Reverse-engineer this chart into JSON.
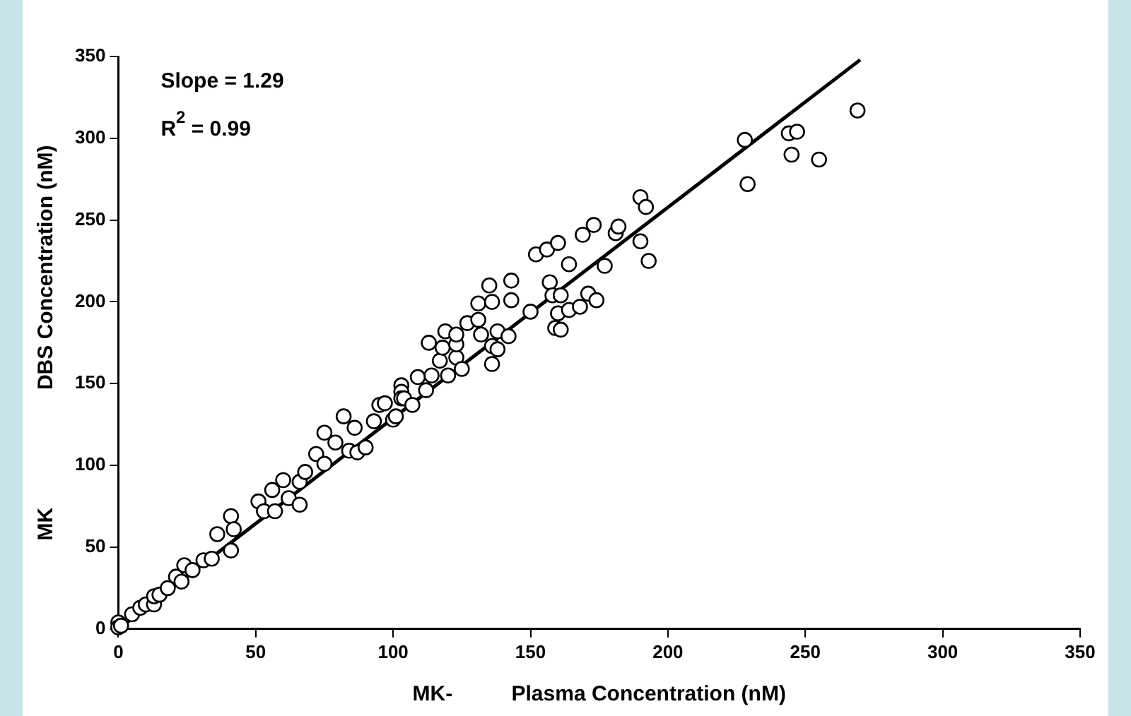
{
  "chart_data": {
    "type": "scatter",
    "xlabel": "MK-          Plasma Concentration (nM)",
    "ylabel": "MK                    DBS Concentration (nM)",
    "annotations": [
      "Slope = 1.29",
      "R$^{2}$ = 0.99"
    ],
    "xlim": [
      0,
      350
    ],
    "xticks": [
      0,
      50,
      100,
      150,
      200,
      250,
      300,
      350
    ],
    "ylim": [
      0,
      350
    ],
    "yticks": [
      0,
      50,
      100,
      150,
      200,
      250,
      300,
      350
    ],
    "grid": false,
    "legend": false,
    "marker": "circle",
    "series": [
      {
        "color": "#000000",
        "x": [
          0,
          0,
          1,
          5,
          8,
          10,
          13,
          13,
          15,
          18,
          21,
          23,
          24,
          27,
          31,
          34,
          36,
          41,
          41,
          42,
          51,
          53,
          56,
          57,
          60,
          62,
          66,
          66,
          68,
          72,
          75,
          75,
          79,
          82,
          84,
          86,
          87,
          90,
          93,
          95,
          97,
          100,
          101,
          103,
          103,
          103,
          104,
          107,
          109,
          112,
          113,
          114,
          117,
          118,
          119,
          120,
          123,
          123,
          123,
          125,
          127,
          131,
          131,
          132,
          135,
          136,
          136,
          136,
          138,
          138,
          142,
          143,
          143,
          150,
          152,
          156,
          157,
          158,
          159,
          160,
          160,
          161,
          161,
          164,
          164,
          168,
          169,
          171,
          173,
          174,
          177,
          181,
          182,
          190,
          190,
          192,
          193,
          228,
          229,
          244,
          245,
          247,
          255,
          269
        ],
        "values": [
          4,
          1,
          2,
          9,
          13,
          15,
          15,
          20,
          21,
          25,
          32,
          29,
          39,
          36,
          42,
          43,
          58,
          69,
          48,
          61,
          78,
          72,
          85,
          72,
          91,
          80,
          90,
          76,
          96,
          107,
          120,
          101,
          114,
          130,
          109,
          123,
          108,
          111,
          127,
          137,
          138,
          128,
          130,
          149,
          145,
          141,
          141,
          137,
          154,
          146,
          175,
          155,
          164,
          172,
          182,
          155,
          166,
          174,
          180,
          159,
          187,
          189,
          199,
          180,
          210,
          200,
          173,
          162,
          182,
          171,
          179,
          213,
          201,
          194,
          229,
          232,
          212,
          204,
          184,
          193,
          236,
          183,
          204,
          195,
          223,
          197,
          241,
          205,
          247,
          201,
          222,
          242,
          246,
          264,
          237,
          258,
          225,
          299,
          272,
          303,
          290,
          304,
          287,
          317
        ]
      },
      {
        "type": "line",
        "color": "#000000",
        "marker": "none",
        "line_style": "solid",
        "x": [
          0,
          270
        ],
        "values": [
          0,
          348
        ]
      }
    ]
  }
}
